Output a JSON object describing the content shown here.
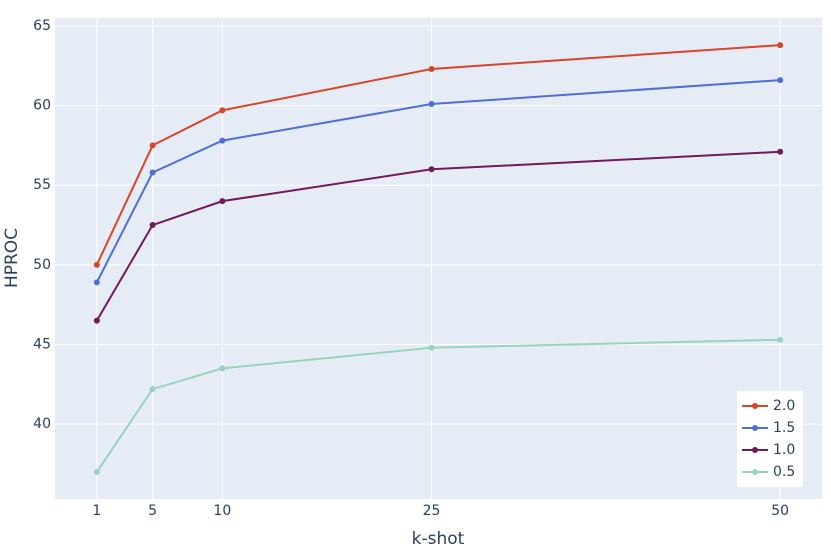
{
  "chart_data": {
    "type": "line",
    "x": [
      1,
      5,
      10,
      25,
      50
    ],
    "xlabel": "k-shot",
    "ylabel": "HPROC",
    "xlim": [
      -2,
      53
    ],
    "xticks": [
      1,
      5,
      10,
      25,
      50
    ],
    "ylim": [
      35.3,
      65.5
    ],
    "yticks": [
      40,
      45,
      50,
      55,
      60,
      65
    ],
    "grid": true,
    "legend": "lower right",
    "series": [
      {
        "name": "2.0",
        "color": "#d5462a",
        "values": [
          50.0,
          57.5,
          59.7,
          62.3,
          63.8
        ]
      },
      {
        "name": "1.5",
        "color": "#4e6fd5",
        "values": [
          48.9,
          55.8,
          57.8,
          60.1,
          61.6
        ]
      },
      {
        "name": "1.0",
        "color": "#731a58",
        "values": [
          46.5,
          52.5,
          54.0,
          56.0,
          57.1
        ]
      },
      {
        "name": "0.5",
        "color": "#97d3be",
        "values": [
          37.0,
          42.2,
          43.5,
          44.8,
          45.3
        ]
      }
    ]
  }
}
